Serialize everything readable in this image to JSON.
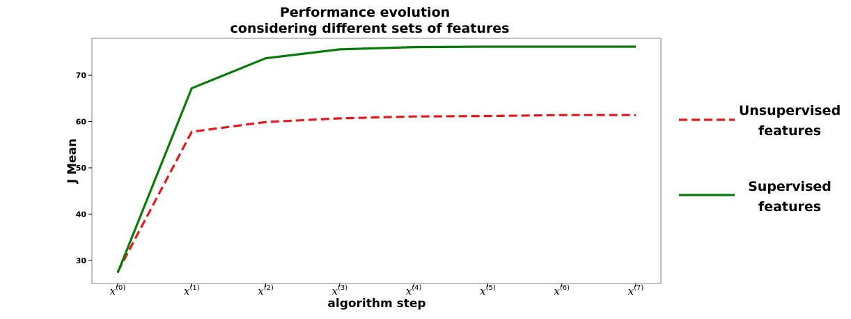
{
  "chart_data": {
    "type": "line",
    "title": [
      "Performance evolution",
      "considering different sets of features"
    ],
    "xlabel": "algorithm step",
    "ylabel": "J Mean",
    "categories": [
      "x(0)",
      "x(1)",
      "x(2)",
      "x(3)",
      "x(4)",
      "x(5)",
      "x(6)",
      "x(7)"
    ],
    "x_ticks": [
      {
        "base": "x",
        "sup": "(0)"
      },
      {
        "base": "x",
        "sup": "(1)"
      },
      {
        "base": "x",
        "sup": "(2)"
      },
      {
        "base": "x",
        "sup": "(3)"
      },
      {
        "base": "x",
        "sup": "(4)"
      },
      {
        "base": "x",
        "sup": "(5)"
      },
      {
        "base": "x",
        "sup": "(6)"
      },
      {
        "base": "x",
        "sup": "(7)"
      }
    ],
    "y_ticks": [
      "30",
      "40",
      "50",
      "60",
      "70"
    ],
    "ylim": [
      25,
      78
    ],
    "grid": false,
    "legend_position": "right outside",
    "series": [
      {
        "name_lines": [
          "Unsupervised",
          "features"
        ],
        "color": "#e31a1c",
        "style": "dashed",
        "values": [
          27.5,
          57.8,
          59.9,
          60.7,
          61.1,
          61.2,
          61.4,
          61.4
        ]
      },
      {
        "name_lines": [
          "Supervised",
          "features"
        ],
        "color": "#0a7a0a",
        "style": "solid",
        "values": [
          27.3,
          67.2,
          73.7,
          75.6,
          76.1,
          76.2,
          76.2,
          76.2
        ]
      }
    ]
  }
}
